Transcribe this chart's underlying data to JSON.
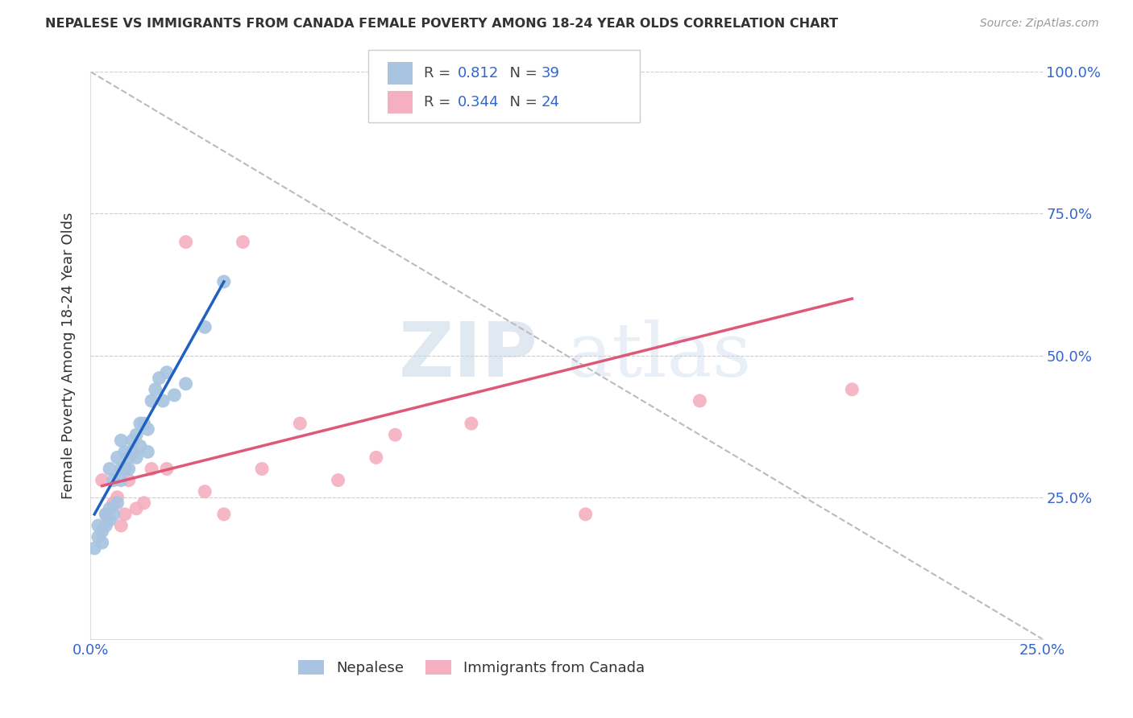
{
  "title": "NEPALESE VS IMMIGRANTS FROM CANADA FEMALE POVERTY AMONG 18-24 YEAR OLDS CORRELATION CHART",
  "source": "Source: ZipAtlas.com",
  "ylabel": "Female Poverty Among 18-24 Year Olds",
  "xlim": [
    0.0,
    0.25
  ],
  "ylim": [
    0.0,
    1.0
  ],
  "xticks": [
    0.0,
    0.05,
    0.1,
    0.15,
    0.2,
    0.25
  ],
  "xticklabels": [
    "0.0%",
    "",
    "",
    "",
    "",
    "25.0%"
  ],
  "yticks": [
    0.0,
    0.25,
    0.5,
    0.75,
    1.0
  ],
  "yticklabels": [
    "",
    "25.0%",
    "50.0%",
    "75.0%",
    "100.0%"
  ],
  "blue_R": 0.812,
  "blue_N": 39,
  "pink_R": 0.344,
  "pink_N": 24,
  "blue_color": "#a8c4e0",
  "pink_color": "#f4b0c0",
  "blue_line_color": "#2060c0",
  "pink_line_color": "#e05878",
  "blue_label": "Nepalese",
  "pink_label": "Immigrants from Canada",
  "watermark_zip": "ZIP",
  "watermark_atlas": "atlas",
  "blue_scatter_x": [
    0.001,
    0.002,
    0.002,
    0.003,
    0.003,
    0.004,
    0.004,
    0.005,
    0.005,
    0.005,
    0.006,
    0.006,
    0.007,
    0.007,
    0.008,
    0.008,
    0.008,
    0.009,
    0.009,
    0.01,
    0.01,
    0.011,
    0.011,
    0.012,
    0.012,
    0.013,
    0.013,
    0.014,
    0.015,
    0.015,
    0.016,
    0.017,
    0.018,
    0.019,
    0.02,
    0.022,
    0.025,
    0.03,
    0.035
  ],
  "blue_scatter_y": [
    0.16,
    0.18,
    0.2,
    0.17,
    0.19,
    0.2,
    0.22,
    0.21,
    0.23,
    0.3,
    0.22,
    0.28,
    0.24,
    0.32,
    0.28,
    0.3,
    0.35,
    0.3,
    0.33,
    0.3,
    0.32,
    0.33,
    0.35,
    0.32,
    0.36,
    0.34,
    0.38,
    0.38,
    0.33,
    0.37,
    0.42,
    0.44,
    0.46,
    0.42,
    0.47,
    0.43,
    0.45,
    0.55,
    0.63
  ],
  "pink_scatter_x": [
    0.003,
    0.004,
    0.006,
    0.007,
    0.008,
    0.009,
    0.01,
    0.012,
    0.014,
    0.016,
    0.02,
    0.025,
    0.03,
    0.035,
    0.04,
    0.045,
    0.055,
    0.065,
    0.075,
    0.08,
    0.1,
    0.13,
    0.16,
    0.2
  ],
  "pink_scatter_y": [
    0.28,
    0.22,
    0.24,
    0.25,
    0.2,
    0.22,
    0.28,
    0.23,
    0.24,
    0.3,
    0.3,
    0.7,
    0.26,
    0.22,
    0.7,
    0.3,
    0.38,
    0.28,
    0.32,
    0.36,
    0.38,
    0.22,
    0.42,
    0.44
  ],
  "blue_line_x": [
    0.001,
    0.035
  ],
  "blue_line_y": [
    0.22,
    0.63
  ],
  "pink_line_x": [
    0.003,
    0.2
  ],
  "pink_line_y": [
    0.27,
    0.6
  ],
  "diag_line_x": [
    0.0,
    0.25
  ],
  "diag_line_y": [
    1.0,
    0.0
  ]
}
